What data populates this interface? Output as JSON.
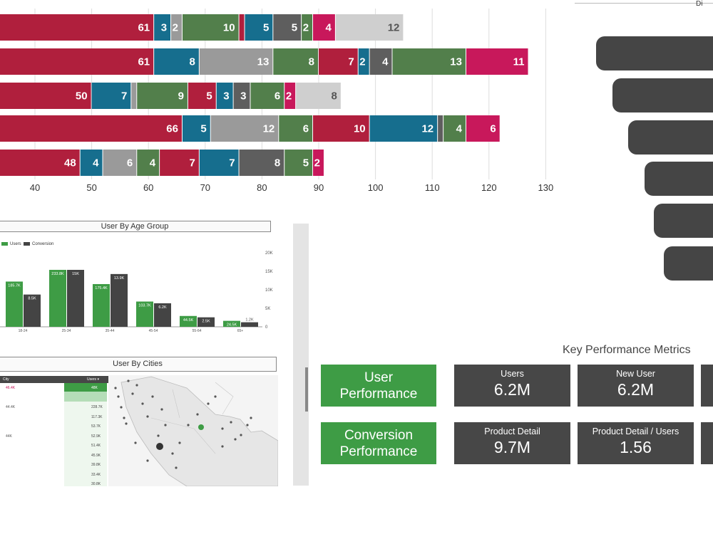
{
  "stacked_chart": {
    "colors": [
      "#b01f3d",
      "#166e8e",
      "#9a9a9a",
      "#527f4b",
      "#b01f3d",
      "#166e8e",
      "#5e5e5e",
      "#527f4b",
      "#c8185b",
      "#cfcfcf"
    ],
    "x_ticks": [
      "40",
      "50",
      "60",
      "70",
      "80",
      "90",
      "100",
      "110",
      "120",
      "130"
    ]
  },
  "chart_data": [
    {
      "type": "bar",
      "orientation": "horizontal",
      "stacked": true,
      "x_ticks": [
        40,
        50,
        60,
        70,
        80,
        90,
        100,
        110,
        120,
        130
      ],
      "xlim": [
        33,
        135
      ],
      "grid": true,
      "rows": [
        [
          61,
          3,
          2,
          10,
          1,
          5,
          5,
          2,
          4,
          12
        ],
        [
          61,
          8,
          13,
          8,
          7,
          2,
          4,
          13,
          11
        ],
        [
          50,
          7,
          1,
          9,
          5,
          3,
          3,
          6,
          2,
          8
        ],
        [
          66,
          5,
          12,
          6,
          10,
          12,
          1,
          4,
          6
        ],
        [
          48,
          4,
          6,
          4,
          7,
          7,
          8,
          5,
          2
        ]
      ],
      "row_colors": [
        [
          "#b01f3d",
          "#166e8e",
          "#9a9a9a",
          "#527f4b",
          "#b01f3d",
          "#166e8e",
          "#5e5e5e",
          "#527f4b",
          "#c8185b",
          "#cfcfcf"
        ],
        [
          "#b01f3d",
          "#166e8e",
          "#9a9a9a",
          "#527f4b",
          "#b01f3d",
          "#166e8e",
          "#5e5e5e",
          "#527f4b",
          "#c8185b"
        ],
        [
          "#b01f3d",
          "#166e8e",
          "#9a9a9a",
          "#527f4b",
          "#b01f3d",
          "#166e8e",
          "#5e5e5e",
          "#527f4b",
          "#c8185b",
          "#cfcfcf"
        ],
        [
          "#b01f3d",
          "#166e8e",
          "#9a9a9a",
          "#527f4b",
          "#b01f3d",
          "#166e8e",
          "#5e5e5e",
          "#527f4b",
          "#c8185b"
        ],
        [
          "#b01f3d",
          "#166e8e",
          "#9a9a9a",
          "#527f4b",
          "#b01f3d",
          "#166e8e",
          "#5e5e5e",
          "#527f4b",
          "#c8185b"
        ]
      ]
    },
    {
      "type": "bar",
      "title": "User By Age Group",
      "categories": [
        "18-24",
        "25-34",
        "35-44",
        "45-54",
        "55-64",
        "65+"
      ],
      "series": [
        {
          "name": "Users",
          "values": [
            185700,
            233800,
            175400,
            103700,
            44500,
            24500
          ],
          "labels": [
            "185.7K",
            "233.8K",
            "175.4K",
            "103.7K",
            "44.5K",
            "24.5K"
          ],
          "color": "#3e9c45"
        },
        {
          "name": "Conversion",
          "values": [
            8500,
            15000,
            13900,
            6200,
            2500,
            1200
          ],
          "labels": [
            "8.5K",
            "15K",
            "13.9K",
            "6.2K",
            "2.5K",
            "1.2K"
          ],
          "color": "#444444"
        }
      ],
      "y2_ticks": [
        "20K",
        "15K",
        "10K",
        "5K",
        "0"
      ],
      "legend": "top-left"
    }
  ],
  "age_panel": {
    "title": "User By Age Group"
  },
  "cities_panel": {
    "title": "User By Cities",
    "header_city": "City",
    "header_users": "Users ▾",
    "rows": [
      {
        "city": "46.4K",
        "users": "48K"
      },
      {
        "city": "",
        "users": ""
      },
      {
        "city": "44.4K",
        "users": "228.7K"
      },
      {
        "city": "",
        "users": "117.3K"
      },
      {
        "city": "",
        "users": "53.7K"
      },
      {
        "city": "44K",
        "users": "52.9K"
      },
      {
        "city": "",
        "users": "51.4K"
      },
      {
        "city": "",
        "users": "45.9K"
      },
      {
        "city": "",
        "users": "39.8K"
      },
      {
        "city": "",
        "users": "33.4K"
      },
      {
        "city": "",
        "users": "30.8K"
      }
    ]
  },
  "kpi": {
    "title": "Key Performance Metrics",
    "user_perf": "User Performance",
    "conv_perf": "Conversion Performance",
    "metrics": [
      {
        "label": "Users",
        "value": "6.2M"
      },
      {
        "label": "New User",
        "value": "6.2M"
      },
      {
        "label": "Product Detail",
        "value": "9.7M"
      },
      {
        "label": "Product Detail / Users",
        "value": "1.56"
      }
    ],
    "partial_label": "Di"
  }
}
